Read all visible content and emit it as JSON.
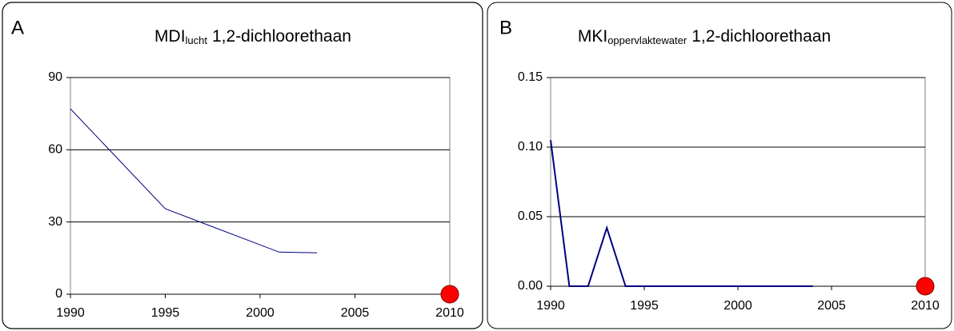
{
  "chart_data": [
    {
      "type": "line",
      "panel": "A",
      "title": "MDI",
      "title_subscript": "lucht",
      "title_suffix": "1,2-dichloorethaan",
      "x": [
        1990,
        1995,
        2001,
        2003
      ],
      "values": [
        77,
        35.5,
        17.5,
        17.2
      ],
      "color": "#000080",
      "xlim": [
        1990,
        2010
      ],
      "xticks": [
        1990,
        1995,
        2000,
        2005,
        2010
      ],
      "ylim": [
        0,
        90
      ],
      "yticks": [
        0,
        30,
        60,
        90
      ],
      "grid": true,
      "target": {
        "x": 2010,
        "value": 0,
        "color": "#ff0000"
      }
    },
    {
      "type": "line",
      "panel": "B",
      "title": "MKI",
      "title_subscript": "oppervlaktewater",
      "title_suffix": "1,2-dichloorethaan",
      "x": [
        1990,
        1991,
        1992,
        1993,
        1994,
        1995,
        1996,
        1997,
        1998,
        1999,
        2000,
        2001,
        2002,
        2003,
        2004
      ],
      "values": [
        0.105,
        0,
        0,
        0.042,
        0,
        0,
        0,
        0,
        0,
        0,
        0,
        0,
        0,
        0,
        0
      ],
      "color": "#000080",
      "xlim": [
        1990,
        2010
      ],
      "xticks": [
        1990,
        1995,
        2000,
        2005,
        2010
      ],
      "ylim": [
        0,
        0.15
      ],
      "yticks": [
        {
          "value": 0,
          "label": "0.00"
        },
        0.05,
        {
          "value": 0.1,
          "label": "0.10"
        },
        0.15
      ],
      "grid": true,
      "target": {
        "x": 2010,
        "value": 0,
        "color": "#ff0000"
      }
    }
  ]
}
